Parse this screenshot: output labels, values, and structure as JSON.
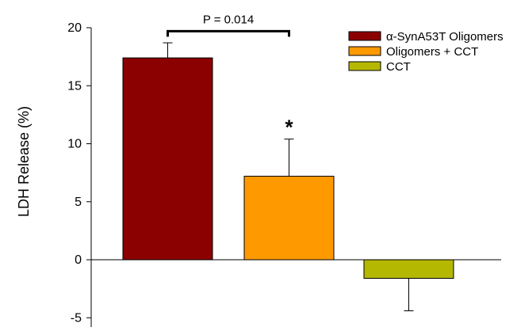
{
  "chart_data": {
    "type": "bar",
    "categories": [
      "α-SynA53T Oligomers",
      "Oligomers + CCT",
      "CCT"
    ],
    "values": [
      17.4,
      7.2,
      -1.6
    ],
    "errors": [
      1.3,
      3.2,
      2.8
    ],
    "colors": [
      "#8b0000",
      "#ff9900",
      "#b5b800"
    ],
    "ylabel": "LDH Release (%)",
    "xlabel": "",
    "ylim": [
      -5.8,
      20
    ],
    "yticks": [
      -5,
      0,
      5,
      10,
      15,
      20
    ],
    "ytick_labels": [
      "-5",
      "0",
      "5",
      "10",
      "15",
      "20"
    ],
    "legend": {
      "position": "top-right",
      "entries": [
        "α-SynA53T Oligomers",
        "Oligomers + CCT",
        "CCT"
      ]
    },
    "annotations": {
      "significance_label": "P = 0.014",
      "significance_between": [
        0,
        1
      ],
      "significance_y": 19.7,
      "star": "*",
      "star_bar": 1
    }
  }
}
